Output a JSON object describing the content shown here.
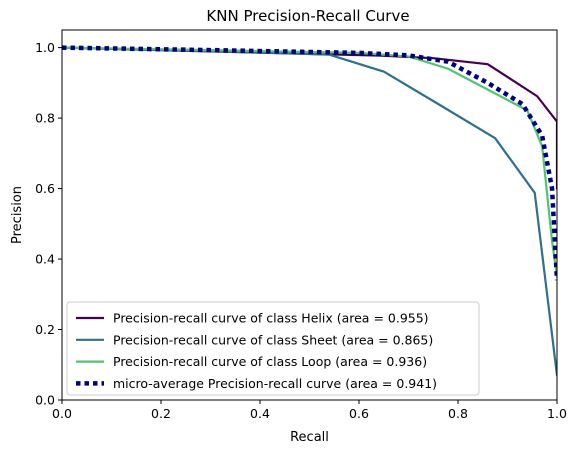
{
  "chart_data": {
    "type": "line",
    "title": "KNN Precision-Recall Curve",
    "xlabel": "Recall",
    "ylabel": "Precision",
    "xlim": [
      0.0,
      1.0
    ],
    "ylim": [
      0.0,
      1.05
    ],
    "xticks": [
      "0.0",
      "0.2",
      "0.4",
      "0.6",
      "0.8",
      "1.0"
    ],
    "yticks": [
      "0.0",
      "0.2",
      "0.4",
      "0.6",
      "0.8",
      "1.0"
    ],
    "grid": false,
    "legend_position": "lower-left",
    "series": [
      {
        "name": "Precision-recall curve of class Helix (area = 0.955)",
        "color": "#440154",
        "style": "solid",
        "x": [
          0.0,
          0.2,
          0.5,
          0.65,
          0.75,
          0.86,
          0.96,
          1.0,
          1.0
        ],
        "y": [
          1.0,
          0.993,
          0.982,
          0.977,
          0.97,
          0.953,
          0.862,
          0.79,
          0.6
        ]
      },
      {
        "name": "Precision-recall curve of class Sheet (area = 0.865)",
        "color": "#30708E",
        "style": "solid",
        "x": [
          0.0,
          0.3,
          0.54,
          0.65,
          0.76,
          0.875,
          0.955,
          1.0
        ],
        "y": [
          1.0,
          0.99,
          0.98,
          0.932,
          0.84,
          0.743,
          0.588,
          0.07
        ]
      },
      {
        "name": "Precision-recall curve of class Loop (area = 0.936)",
        "color": "#52C569",
        "style": "solid",
        "x": [
          0.0,
          0.3,
          0.6,
          0.7,
          0.78,
          0.94,
          0.97,
          0.99,
          1.0
        ],
        "y": [
          1.0,
          0.993,
          0.985,
          0.975,
          0.94,
          0.822,
          0.72,
          0.45,
          0.35
        ]
      },
      {
        "name": "micro-average Precision-recall curve (area = 0.941)",
        "color": "#000080",
        "style": "dotted",
        "x": [
          0.0,
          0.3,
          0.6,
          0.7,
          0.78,
          0.86,
          0.93,
          0.97,
          0.99,
          1.0
        ],
        "y": [
          1.0,
          0.993,
          0.985,
          0.978,
          0.96,
          0.9,
          0.84,
          0.75,
          0.6,
          0.34
        ]
      }
    ]
  }
}
